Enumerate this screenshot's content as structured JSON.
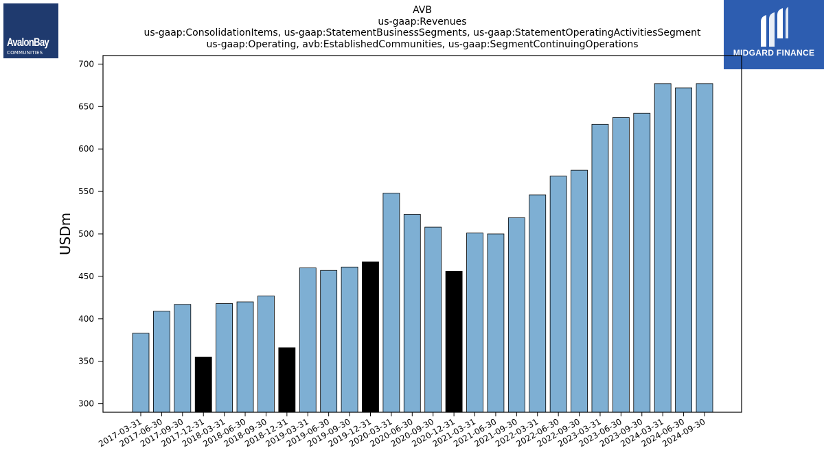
{
  "header": {
    "title_lines": [
      "AVB",
      "us-gaap:Revenues",
      "us-gaap:ConsolidationItems, us-gaap:StatementBusinessSegments, us-gaap:StatementOperatingActivitiesSegment",
      "us-gaap:Operating, avb:EstablishedCommunities, us-gaap:SegmentContinuingOperations"
    ]
  },
  "logos": {
    "left": {
      "name": "AvalonBay",
      "sub": "COMMUNITIES"
    },
    "right": {
      "brand": "MIDGARD FINANCE"
    }
  },
  "chart_data": {
    "type": "bar",
    "ylabel": "USDm",
    "ylim": [
      290,
      710
    ],
    "yticks": [
      300,
      350,
      400,
      450,
      500,
      550,
      600,
      650,
      700
    ],
    "colors": {
      "default": "#7eafd3",
      "highlight": "#000000",
      "edge": "#000000"
    },
    "categories": [
      "2017-03-31",
      "2017-06-30",
      "2017-09-30",
      "2017-12-31",
      "2018-03-31",
      "2018-06-30",
      "2018-09-30",
      "2018-12-31",
      "2019-03-31",
      "2019-06-30",
      "2019-09-30",
      "2019-12-31",
      "2020-03-31",
      "2020-06-30",
      "2020-09-30",
      "2020-12-31",
      "2021-03-31",
      "2021-06-30",
      "2021-09-30",
      "2022-03-31",
      "2022-06-30",
      "2022-09-30",
      "2023-03-31",
      "2023-06-30",
      "2023-09-30",
      "2024-03-31",
      "2024-06-30",
      "2024-09-30"
    ],
    "values": [
      383,
      409,
      417,
      355,
      418,
      420,
      427,
      366,
      460,
      457,
      461,
      467,
      548,
      523,
      508,
      456,
      501,
      500,
      519,
      546,
      568,
      575,
      629,
      637,
      642,
      677,
      672,
      677
    ],
    "highlighted": [
      false,
      false,
      false,
      true,
      false,
      false,
      false,
      true,
      false,
      false,
      false,
      true,
      false,
      false,
      false,
      true,
      false,
      false,
      false,
      false,
      false,
      false,
      false,
      false,
      false,
      false,
      false,
      false
    ]
  }
}
